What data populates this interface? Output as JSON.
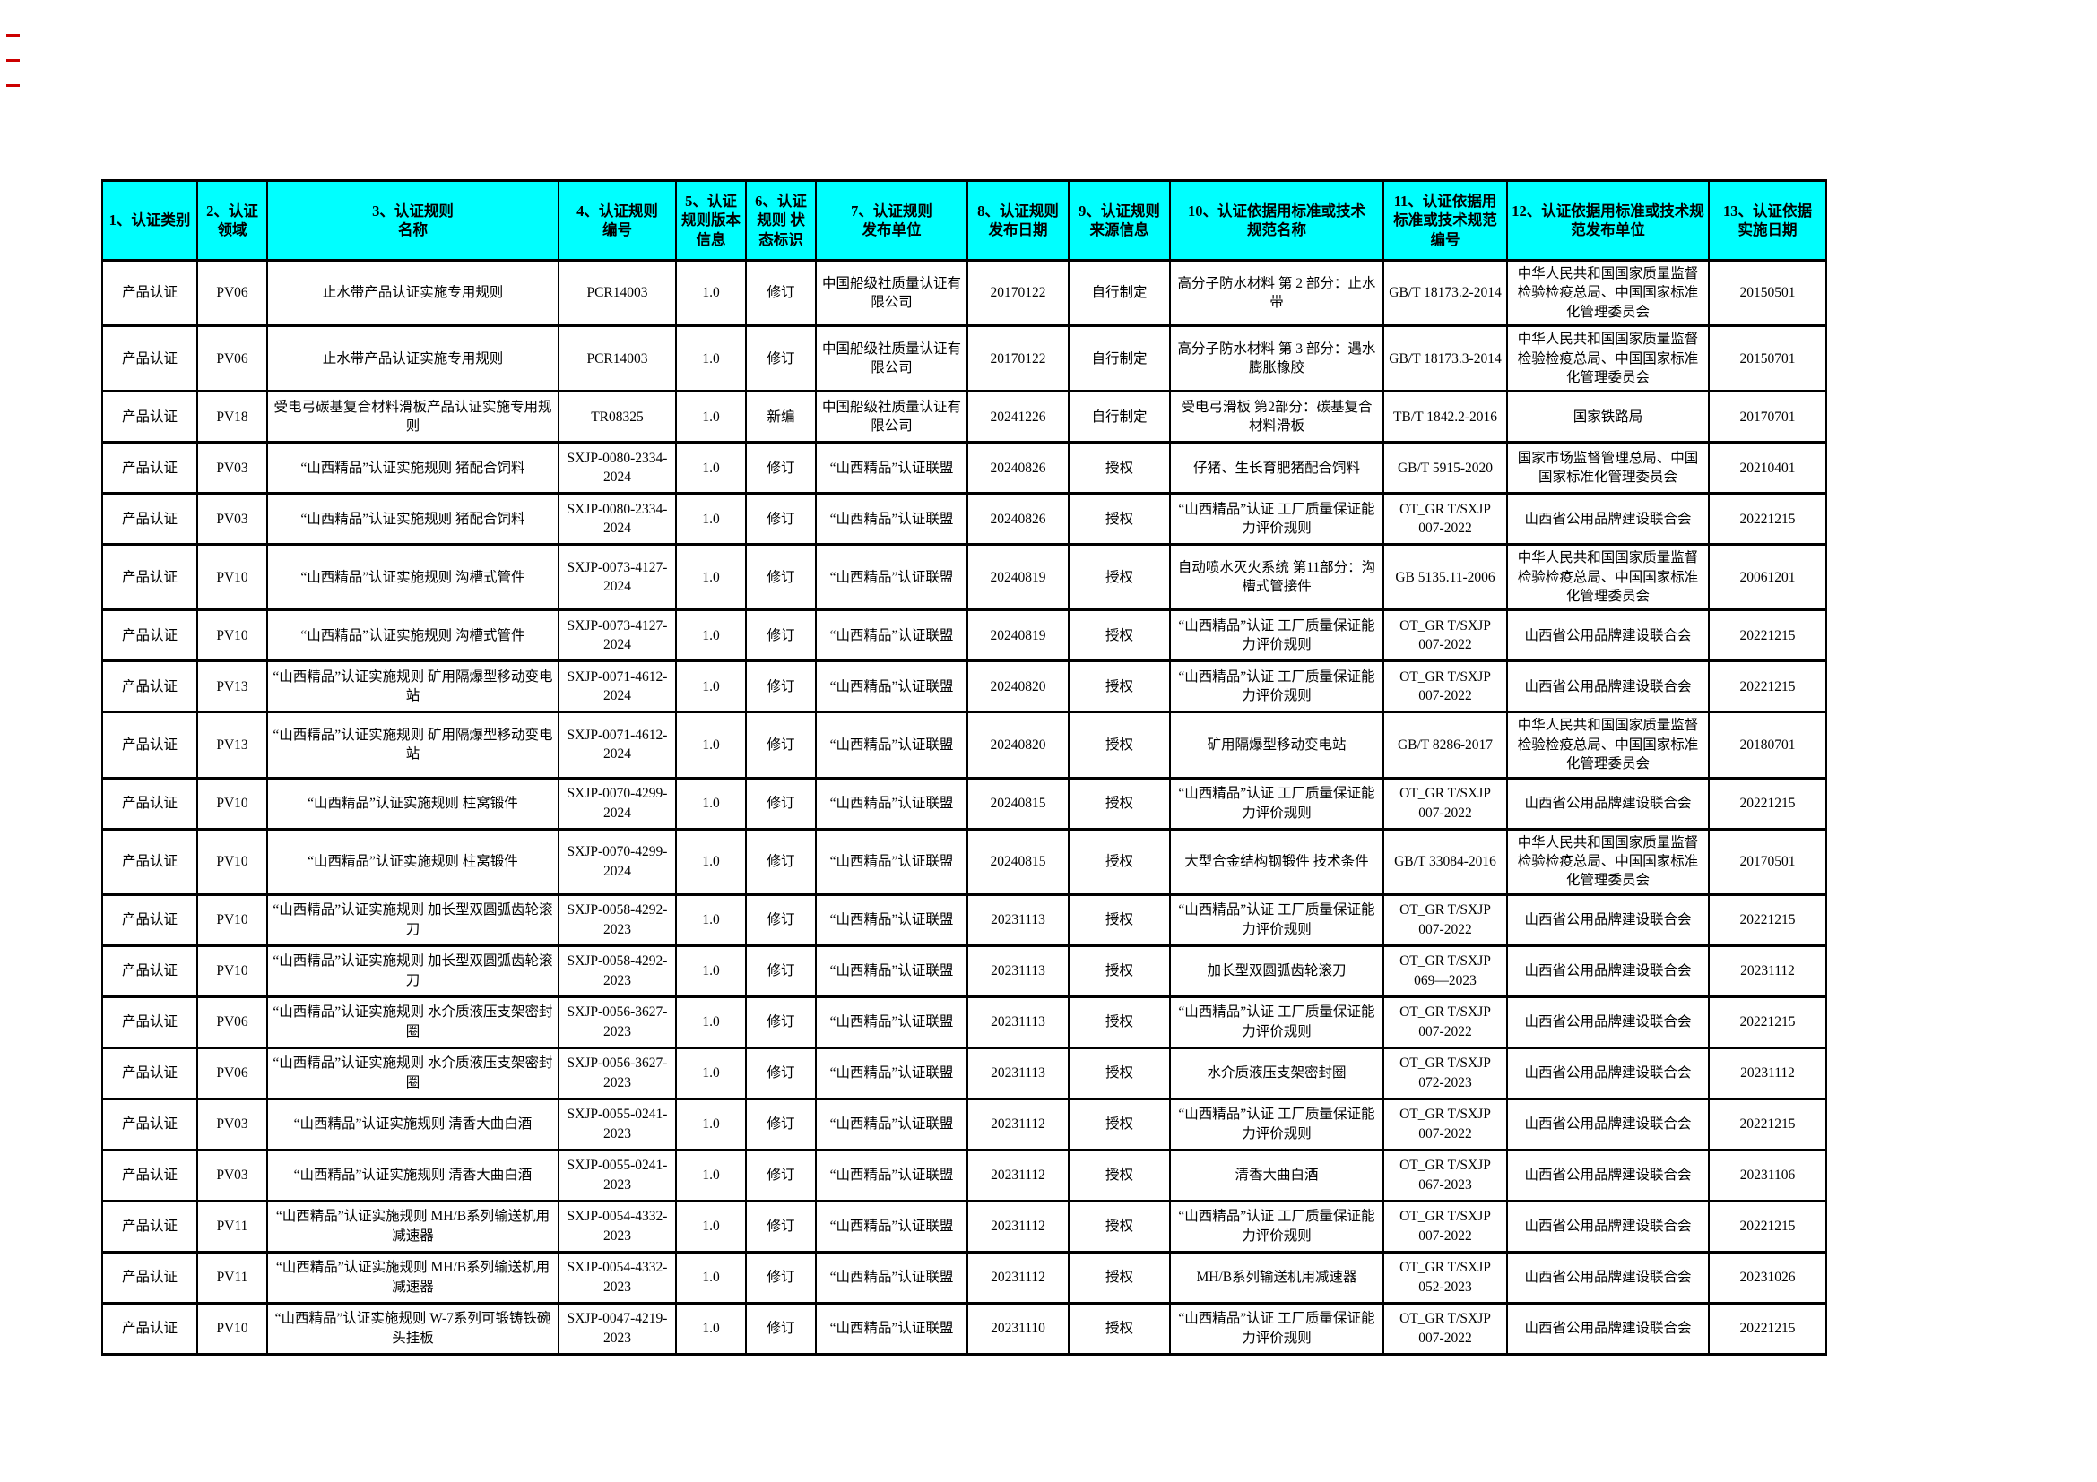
{
  "colors": {
    "header_bg": "#00ffff",
    "border": "#000000",
    "text": "#000000",
    "revision_mark": "#cc0000"
  },
  "table": {
    "headers": [
      "1、认证类别",
      "2、认证领域",
      "3、认证规则\n名称",
      "4、认证规则\n编号",
      "5、认证规则版本信息",
      "6、认证规则 状态标识",
      "7、认证规则\n发布单位",
      "8、认证规则\n发布日期",
      "9、认证规则\n来源信息",
      "10、认证依据用标准或技术\n规范名称",
      "11、认证依据用标准或技术规范编号",
      "12、认证依据用标准或技术规范发布单位",
      "13、认证依据\n实施日期"
    ],
    "rows": [
      [
        "产品认证",
        "PV06",
        "止水带产品认证实施专用规则",
        "PCR14003",
        "1.0",
        "修订",
        "中国船级社质量认证有限公司",
        "20170122",
        "自行制定",
        "高分子防水材料 第 2 部分：止水带",
        "GB/T 18173.2-2014",
        "中华人民共和国国家质量监督检验检疫总局、中国国家标准化管理委员会",
        "20150501"
      ],
      [
        "产品认证",
        "PV06",
        "止水带产品认证实施专用规则",
        "PCR14003",
        "1.0",
        "修订",
        "中国船级社质量认证有限公司",
        "20170122",
        "自行制定",
        "高分子防水材料 第 3 部分：遇水膨胀橡胶",
        "GB/T 18173.3-2014",
        "中华人民共和国国家质量监督检验检疫总局、中国国家标准化管理委员会",
        "20150701"
      ],
      [
        "产品认证",
        "PV18",
        "受电弓碳基复合材料滑板产品认证实施专用规则",
        "TR08325",
        "1.0",
        "新编",
        "中国船级社质量认证有限公司",
        "20241226",
        "自行制定",
        "受电弓滑板 第2部分：碳基复合材料滑板",
        "TB/T 1842.2-2016",
        "国家铁路局",
        "20170701"
      ],
      [
        "产品认证",
        "PV03",
        "“山西精品”认证实施规则 猪配合饲料",
        "SXJP-0080-2334-2024",
        "1.0",
        "修订",
        "“山西精品”认证联盟",
        "20240826",
        "授权",
        "仔猪、生长育肥猪配合饲料",
        "GB/T 5915-2020",
        "国家市场监督管理总局、中国国家标准化管理委员会",
        "20210401"
      ],
      [
        "产品认证",
        "PV03",
        "“山西精品”认证实施规则 猪配合饲料",
        "SXJP-0080-2334-2024",
        "1.0",
        "修订",
        "“山西精品”认证联盟",
        "20240826",
        "授权",
        "“山西精品”认证 工厂质量保证能力评价规则",
        "OT_GR T/SXJP 007-2022",
        "山西省公用品牌建设联合会",
        "20221215"
      ],
      [
        "产品认证",
        "PV10",
        "“山西精品”认证实施规则 沟槽式管件",
        "SXJP-0073-4127-2024",
        "1.0",
        "修订",
        "“山西精品”认证联盟",
        "20240819",
        "授权",
        "自动喷水灭火系统 第11部分：沟槽式管接件",
        "GB 5135.11-2006",
        "中华人民共和国国家质量监督检验检疫总局、中国国家标准化管理委员会",
        "20061201"
      ],
      [
        "产品认证",
        "PV10",
        "“山西精品”认证实施规则 沟槽式管件",
        "SXJP-0073-4127-2024",
        "1.0",
        "修订",
        "“山西精品”认证联盟",
        "20240819",
        "授权",
        "“山西精品”认证 工厂质量保证能力评价规则",
        "OT_GR T/SXJP 007-2022",
        "山西省公用品牌建设联合会",
        "20221215"
      ],
      [
        "产品认证",
        "PV13",
        "“山西精品”认证实施规则 矿用隔爆型移动变电站",
        "SXJP-0071-4612-2024",
        "1.0",
        "修订",
        "“山西精品”认证联盟",
        "20240820",
        "授权",
        "“山西精品”认证 工厂质量保证能力评价规则",
        "OT_GR T/SXJP 007-2022",
        "山西省公用品牌建设联合会",
        "20221215"
      ],
      [
        "产品认证",
        "PV13",
        "“山西精品”认证实施规则 矿用隔爆型移动变电站",
        "SXJP-0071-4612-2024",
        "1.0",
        "修订",
        "“山西精品”认证联盟",
        "20240820",
        "授权",
        "矿用隔爆型移动变电站",
        "GB/T 8286-2017",
        "中华人民共和国国家质量监督检验检疫总局、中国国家标准化管理委员会",
        "20180701"
      ],
      [
        "产品认证",
        "PV10",
        "“山西精品”认证实施规则 柱窝锻件",
        "SXJP-0070-4299-2024",
        "1.0",
        "修订",
        "“山西精品”认证联盟",
        "20240815",
        "授权",
        "“山西精品”认证 工厂质量保证能力评价规则",
        "OT_GR T/SXJP 007-2022",
        "山西省公用品牌建设联合会",
        "20221215"
      ],
      [
        "产品认证",
        "PV10",
        "“山西精品”认证实施规则 柱窝锻件",
        "SXJP-0070-4299-2024",
        "1.0",
        "修订",
        "“山西精品”认证联盟",
        "20240815",
        "授权",
        "大型合金结构钢锻件 技术条件",
        "GB/T 33084-2016",
        "中华人民共和国国家质量监督检验检疫总局、中国国家标准化管理委员会",
        "20170501"
      ],
      [
        "产品认证",
        "PV10",
        "“山西精品”认证实施规则 加长型双圆弧齿轮滚刀",
        "SXJP-0058-4292-2023",
        "1.0",
        "修订",
        "“山西精品”认证联盟",
        "20231113",
        "授权",
        "“山西精品”认证 工厂质量保证能力评价规则",
        "OT_GR T/SXJP 007-2022",
        "山西省公用品牌建设联合会",
        "20221215"
      ],
      [
        "产品认证",
        "PV10",
        "“山西精品”认证实施规则 加长型双圆弧齿轮滚刀",
        "SXJP-0058-4292-2023",
        "1.0",
        "修订",
        "“山西精品”认证联盟",
        "20231113",
        "授权",
        "加长型双圆弧齿轮滚刀",
        "OT_GR T/SXJP 069—2023",
        "山西省公用品牌建设联合会",
        "20231112"
      ],
      [
        "产品认证",
        "PV06",
        "“山西精品”认证实施规则 水介质液压支架密封圈",
        "SXJP-0056-3627-2023",
        "1.0",
        "修订",
        "“山西精品”认证联盟",
        "20231113",
        "授权",
        "“山西精品”认证 工厂质量保证能力评价规则",
        "OT_GR T/SXJP 007-2022",
        "山西省公用品牌建设联合会",
        "20221215"
      ],
      [
        "产品认证",
        "PV06",
        "“山西精品”认证实施规则 水介质液压支架密封圈",
        "SXJP-0056-3627-2023",
        "1.0",
        "修订",
        "“山西精品”认证联盟",
        "20231113",
        "授权",
        "水介质液压支架密封圈",
        "OT_GR T/SXJP 072-2023",
        "山西省公用品牌建设联合会",
        "20231112"
      ],
      [
        "产品认证",
        "PV03",
        "“山西精品”认证实施规则 清香大曲白酒",
        "SXJP-0055-0241-2023",
        "1.0",
        "修订",
        "“山西精品”认证联盟",
        "20231112",
        "授权",
        "“山西精品”认证 工厂质量保证能力评价规则",
        "OT_GR T/SXJP 007-2022",
        "山西省公用品牌建设联合会",
        "20221215"
      ],
      [
        "产品认证",
        "PV03",
        "“山西精品”认证实施规则 清香大曲白酒",
        "SXJP-0055-0241-2023",
        "1.0",
        "修订",
        "“山西精品”认证联盟",
        "20231112",
        "授权",
        "清香大曲白酒",
        "OT_GR T/SXJP 067-2023",
        "山西省公用品牌建设联合会",
        "20231106"
      ],
      [
        "产品认证",
        "PV11",
        "“山西精品”认证实施规则 MH/B系列输送机用减速器",
        "SXJP-0054-4332-2023",
        "1.0",
        "修订",
        "“山西精品”认证联盟",
        "20231112",
        "授权",
        "“山西精品”认证 工厂质量保证能力评价规则",
        "OT_GR T/SXJP 007-2022",
        "山西省公用品牌建设联合会",
        "20221215"
      ],
      [
        "产品认证",
        "PV11",
        "“山西精品”认证实施规则 MH/B系列输送机用减速器",
        "SXJP-0054-4332-2023",
        "1.0",
        "修订",
        "“山西精品”认证联盟",
        "20231112",
        "授权",
        "MH/B系列输送机用减速器",
        "OT_GR T/SXJP 052-2023",
        "山西省公用品牌建设联合会",
        "20231026"
      ],
      [
        "产品认证",
        "PV10",
        "“山西精品”认证实施规则 W-7系列可锻铸铁碗头挂板",
        "SXJP-0047-4219-2023",
        "1.0",
        "修订",
        "“山西精品”认证联盟",
        "20231110",
        "授权",
        "“山西精品”认证 工厂质量保证能力评价规则",
        "OT_GR T/SXJP 007-2022",
        "山西省公用品牌建设联合会",
        "20221215"
      ]
    ]
  }
}
